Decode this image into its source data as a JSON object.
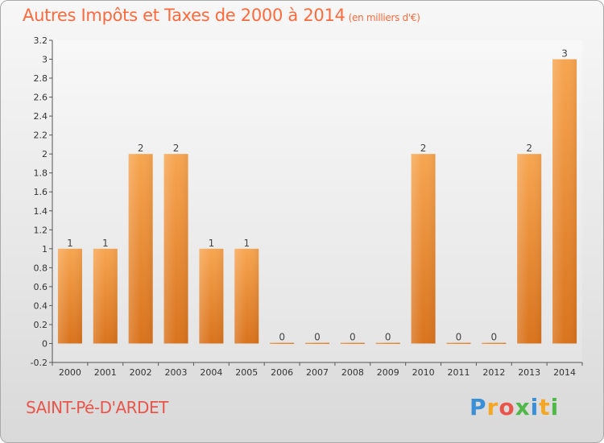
{
  "header": {
    "title": "Autres Impôts et Taxes de 2000 à 2014",
    "unit": "(en milliers d'€)"
  },
  "footer": {
    "commune": "SAINT-Pé-D'ARDET",
    "logo_letters": [
      "P",
      "r",
      "o",
      "x",
      "i",
      "t",
      "i"
    ],
    "logo_colors": [
      "#3a8fd6",
      "#f5a623",
      "#e8554a",
      "#4fb848",
      "#3a8fd6",
      "#f5a623",
      "#4fb848"
    ]
  },
  "chart_data": {
    "type": "bar",
    "categories": [
      "2000",
      "2001",
      "2002",
      "2003",
      "2004",
      "2005",
      "2006",
      "2007",
      "2008",
      "2009",
      "2010",
      "2011",
      "2012",
      "2013",
      "2014"
    ],
    "values": [
      1,
      1,
      2,
      2,
      1,
      1,
      0,
      0,
      0,
      0,
      2,
      0,
      0,
      2,
      3
    ],
    "data_labels": [
      "1",
      "1",
      "2",
      "2",
      "1",
      "1",
      "0",
      "0",
      "0",
      "0",
      "2",
      "0",
      "0",
      "2",
      "3"
    ],
    "yticks": [
      -0.2,
      0,
      0.2,
      0.4,
      0.6,
      0.8,
      1,
      1.2,
      1.4,
      1.6,
      1.8,
      2,
      2.2,
      2.4,
      2.6,
      2.8,
      3,
      3.2
    ],
    "ytick_labels": [
      "-0.2",
      "0",
      "0.2",
      "0.4",
      "0.6",
      "0.8",
      "1",
      "1.2",
      "1.4",
      "1.6",
      "1.8",
      "2",
      "2.2",
      "2.4",
      "2.6",
      "2.8",
      "3",
      "3.2"
    ],
    "ylim": [
      -0.2,
      3.2
    ],
    "grid": false,
    "bar_color": "#f28f30"
  }
}
